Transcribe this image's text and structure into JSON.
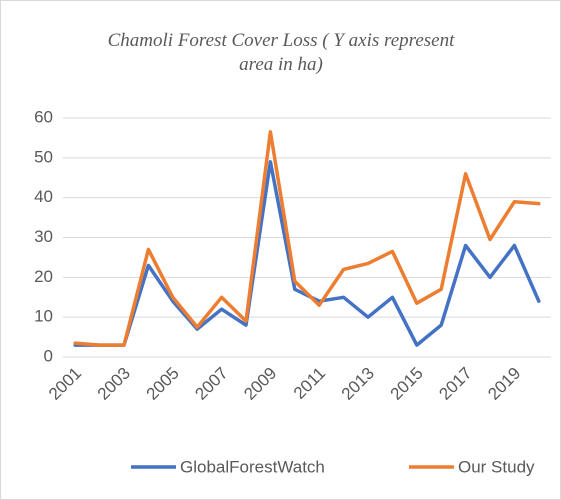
{
  "chart_data": {
    "type": "line",
    "title": "Chamoli Forest Cover Loss ( Y axis represent area in ha)",
    "categories": [
      "2001",
      null,
      "2003",
      null,
      "2005",
      null,
      "2007",
      null,
      "2009",
      null,
      "2011",
      null,
      "2013",
      null,
      "2015",
      null,
      "2017",
      null,
      "2019",
      null
    ],
    "series": [
      {
        "name": "GlobalForestWatch",
        "color": "#4472c4",
        "values": [
          3,
          3,
          3,
          23,
          14,
          7,
          12,
          8,
          49,
          17,
          14,
          15,
          10,
          15,
          3,
          8,
          28,
          20,
          28,
          14
        ]
      },
      {
        "name": "Our Study",
        "color": "#ed7d31",
        "values": [
          3.5,
          3,
          3,
          27,
          15,
          7.5,
          15,
          9,
          56.5,
          19,
          13,
          22,
          23.5,
          26.5,
          13.5,
          17,
          46,
          29.5,
          39,
          38.5
        ]
      }
    ],
    "ylim": [
      0,
      60
    ],
    "yticks": [
      0,
      10,
      20,
      30,
      40,
      50,
      60
    ],
    "grid": true,
    "legend": "bottom"
  }
}
